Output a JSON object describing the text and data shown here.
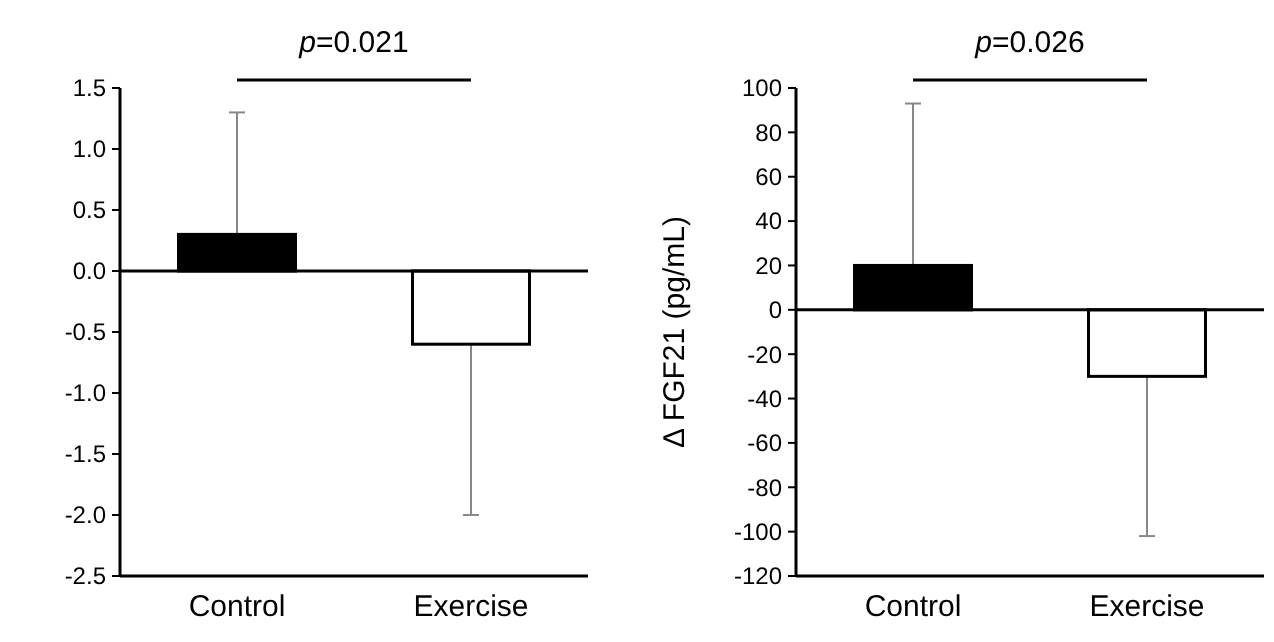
{
  "chart_data": [
    {
      "type": "bar",
      "categories": [
        "Control",
        "Exercise"
      ],
      "values": [
        0.3,
        -0.6
      ],
      "colors": [
        "#000000",
        "#ffffff"
      ],
      "errors": [
        [
          0.3,
          1.3
        ],
        [
          -2.0,
          -0.6
        ]
      ],
      "ylim": [
        -2.5,
        1.5
      ],
      "yticks": [
        {
          "value": 1.5,
          "label": "1.5"
        },
        {
          "value": 1,
          "label": "1.0"
        },
        {
          "value": 0.5,
          "label": "0.5"
        },
        {
          "value": 0,
          "label": "0.0"
        },
        {
          "value": -0.5,
          "label": "-0.5"
        },
        {
          "value": -1,
          "label": "-1.0"
        },
        {
          "value": -1.5,
          "label": "-1.5"
        },
        {
          "value": -2,
          "label": "-2.0"
        },
        {
          "value": -2.5,
          "label": "-2.5"
        }
      ],
      "annotations": [
        "p=0.021"
      ],
      "ref_lines": [
        {
          "axis": "y",
          "value": 0
        }
      ]
    },
    {
      "type": "bar",
      "categories": [
        "Control",
        "Exercise"
      ],
      "values": [
        20,
        -30
      ],
      "colors": [
        "#000000",
        "#ffffff"
      ],
      "errors": [
        [
          20,
          93
        ],
        [
          -102,
          -30
        ]
      ],
      "ylim": [
        -120,
        100
      ],
      "yticks": [
        100,
        80,
        60,
        40,
        20,
        0,
        -20,
        -40,
        -60,
        -80,
        -100,
        -120
      ],
      "ylabel": "Δ FGF21 (pg/mL)",
      "annotations": [
        "p=0.026"
      ],
      "ref_lines": [
        {
          "axis": "y",
          "value": 0
        }
      ]
    }
  ]
}
